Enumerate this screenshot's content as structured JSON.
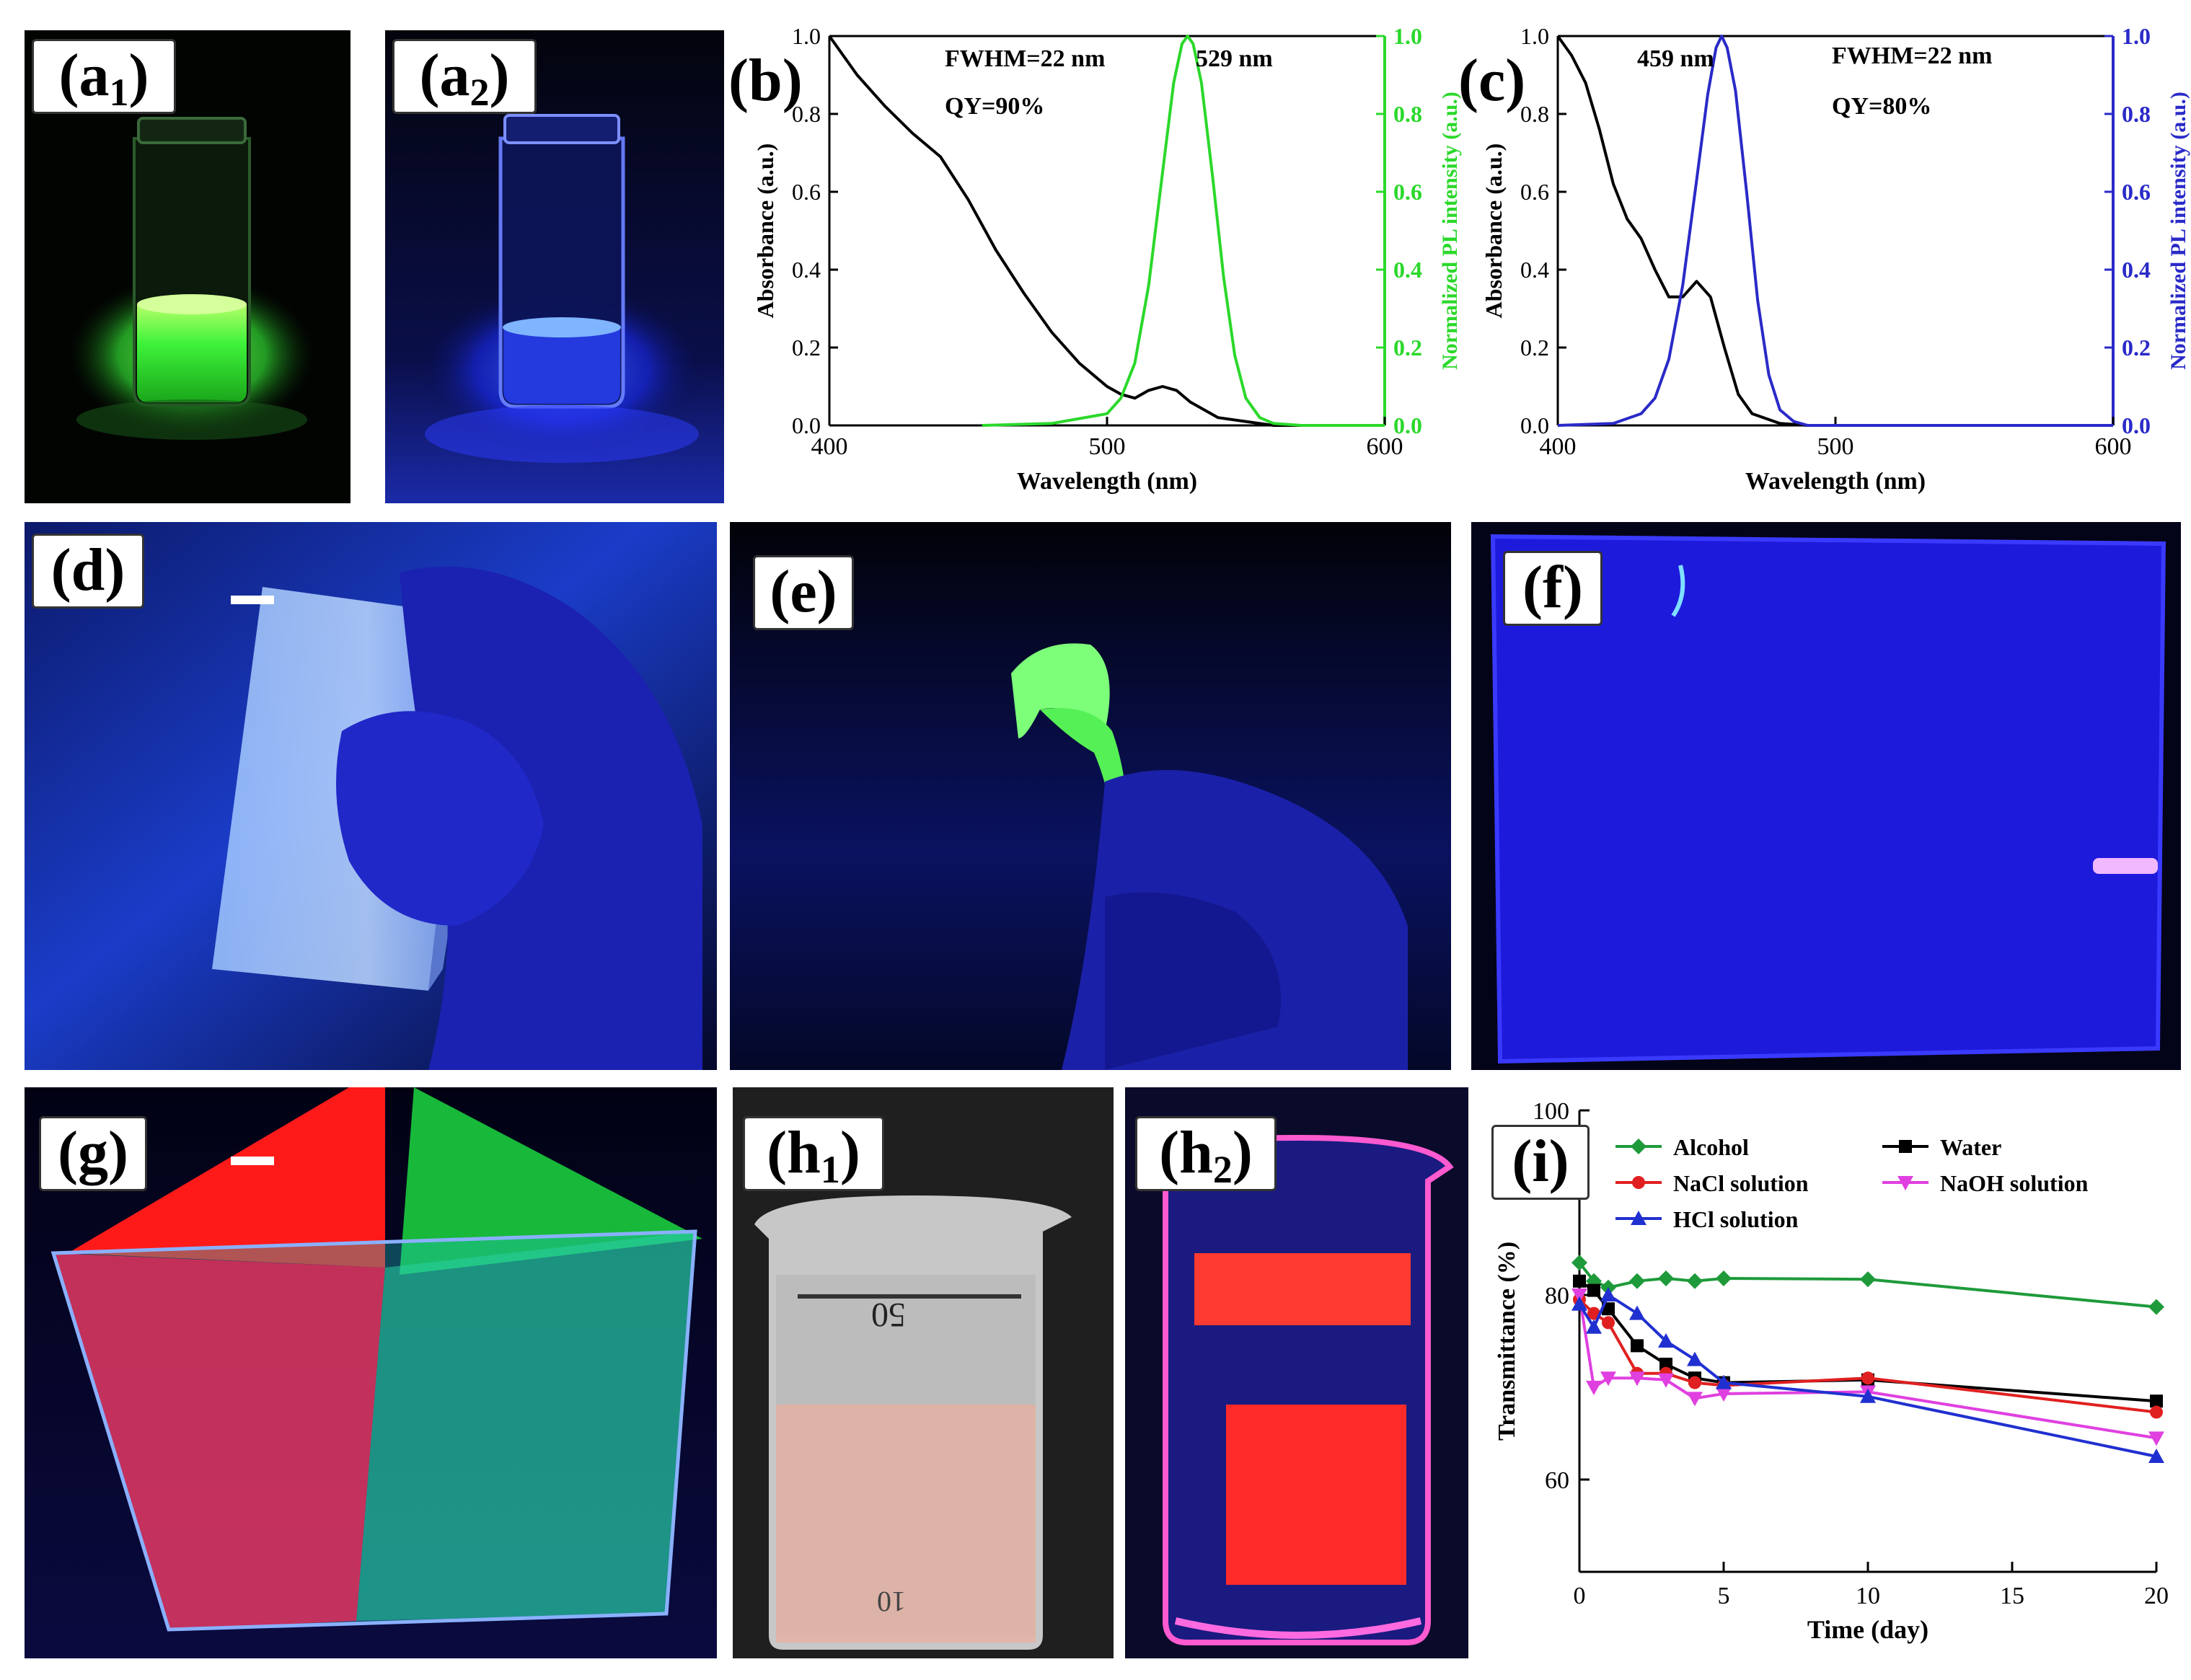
{
  "panels": {
    "a1": {
      "label": "a",
      "sub": "1"
    },
    "a2": {
      "label": "a",
      "sub": "2"
    },
    "d": {
      "label": "(d)"
    },
    "e": {
      "label": "(e)"
    },
    "f": {
      "label": "(f)"
    },
    "g": {
      "label": "(g)"
    },
    "h1": {
      "label": "h",
      "sub": "1"
    },
    "h2": {
      "label": "h",
      "sub": "2"
    }
  },
  "photo_colors": {
    "green_emission": "#39ff3a",
    "blue_emission": "#1b2dff",
    "red_emission": "#ff1a2a",
    "pink_glow": "#ff3fb8",
    "background": "#05050f"
  },
  "beaker": {
    "mark_50": "50",
    "mark_10": "10"
  },
  "chart_data": [
    {
      "id": "b",
      "panel_label": "(b)",
      "type": "line",
      "xlabel": "Wavelength (nm)",
      "ylabel_left": "Absorbance (a.u.)",
      "ylabel_right": "Normalized PL intensity (a.u.)",
      "xlim": [
        400,
        600
      ],
      "ylim": [
        0,
        1.0
      ],
      "x_ticks": [
        "400",
        "500",
        "600"
      ],
      "y_ticks": [
        "0.0",
        "0.2",
        "0.4",
        "0.6",
        "0.8",
        "1.0"
      ],
      "right_axis_color": "#2bd82b",
      "annotations": [
        "FWHM=22 nm",
        "QY=90%",
        "529 nm"
      ],
      "series": [
        {
          "axis": "left",
          "color": "#000000",
          "x": [
            400,
            410,
            420,
            430,
            440,
            450,
            460,
            470,
            480,
            490,
            500,
            505,
            510,
            515,
            520,
            525,
            530,
            540,
            550,
            560,
            570,
            580,
            590,
            600
          ],
          "y": [
            1.0,
            0.9,
            0.82,
            0.75,
            0.69,
            0.58,
            0.45,
            0.34,
            0.24,
            0.16,
            0.1,
            0.08,
            0.07,
            0.09,
            0.1,
            0.09,
            0.06,
            0.02,
            0.01,
            0.0,
            0.0,
            0.0,
            0.0,
            0.0
          ]
        },
        {
          "axis": "right",
          "color": "#2bd82b",
          "x": [
            455,
            480,
            500,
            505,
            510,
            515,
            520,
            524,
            527,
            529,
            531,
            534,
            538,
            542,
            546,
            550,
            555,
            560,
            570,
            600
          ],
          "y": [
            0.0,
            0.005,
            0.03,
            0.07,
            0.16,
            0.36,
            0.65,
            0.88,
            0.98,
            1.0,
            0.98,
            0.88,
            0.64,
            0.38,
            0.18,
            0.07,
            0.02,
            0.005,
            0.0,
            0.0
          ]
        }
      ]
    },
    {
      "id": "c",
      "panel_label": "(c)",
      "type": "line",
      "xlabel": "Wavelength (nm)",
      "ylabel_left": "Absorbance (a.u.)",
      "ylabel_right": "Normalized PL intensity (a.u.)",
      "xlim": [
        400,
        600
      ],
      "ylim": [
        0,
        1.0
      ],
      "x_ticks": [
        "400",
        "500",
        "600"
      ],
      "y_ticks": [
        "0.0",
        "0.2",
        "0.4",
        "0.6",
        "0.8",
        "1.0"
      ],
      "right_axis_color": "#2a2ac8",
      "annotations": [
        "459 nm",
        "FWHM=22 nm",
        "QY=80%"
      ],
      "series": [
        {
          "axis": "left",
          "color": "#000000",
          "x": [
            400,
            405,
            410,
            415,
            420,
            425,
            430,
            435,
            440,
            445,
            450,
            455,
            460,
            465,
            470,
            480,
            490,
            500,
            600
          ],
          "y": [
            1.0,
            0.95,
            0.88,
            0.76,
            0.62,
            0.53,
            0.48,
            0.4,
            0.33,
            0.33,
            0.37,
            0.33,
            0.2,
            0.08,
            0.03,
            0.005,
            0.0,
            0.0,
            0.0
          ]
        },
        {
          "axis": "right",
          "color": "#2a2ac8",
          "x": [
            400,
            420,
            430,
            435,
            440,
            445,
            450,
            454,
            457,
            459,
            461,
            464,
            468,
            472,
            476,
            480,
            485,
            490,
            600
          ],
          "y": [
            0.0,
            0.005,
            0.03,
            0.07,
            0.17,
            0.36,
            0.63,
            0.85,
            0.97,
            1.0,
            0.97,
            0.86,
            0.6,
            0.32,
            0.13,
            0.04,
            0.01,
            0.0,
            0.0
          ]
        }
      ]
    },
    {
      "id": "i",
      "panel_label": "(i)",
      "type": "line",
      "xlabel": "Time (day)",
      "ylabel": "Transmittance (%)",
      "xlim": [
        0,
        20
      ],
      "ylim": [
        50,
        100
      ],
      "x_ticks": [
        "0",
        "5",
        "10",
        "15",
        "20"
      ],
      "y_ticks": [
        "60",
        "80",
        "100"
      ],
      "legend": "top",
      "series": [
        {
          "name": "Alcohol",
          "color": "#1e9a3a",
          "marker": "diamond",
          "x": [
            0,
            0.5,
            1,
            2,
            3,
            4,
            5,
            10,
            20
          ],
          "y": [
            83.5,
            81.5,
            80.8,
            81.5,
            81.8,
            81.5,
            81.8,
            81.7,
            78.7
          ]
        },
        {
          "name": "Water",
          "color": "#000000",
          "marker": "square",
          "x": [
            0,
            0.5,
            1,
            2,
            3,
            4,
            5,
            10,
            20
          ],
          "y": [
            81.5,
            80.5,
            78.5,
            74.5,
            72.5,
            71,
            70.5,
            70.8,
            68.5
          ]
        },
        {
          "name": "NaCl solution",
          "color": "#e02020",
          "marker": "circle",
          "x": [
            0,
            0.5,
            1,
            2,
            3,
            4,
            5,
            10,
            20
          ],
          "y": [
            79.5,
            78,
            77,
            71.5,
            71.5,
            70.5,
            70.2,
            71,
            67.3
          ]
        },
        {
          "name": "NaOH solution",
          "color": "#e040e0",
          "marker": "triangle-down",
          "x": [
            0,
            0.5,
            1,
            2,
            3,
            4,
            5,
            10,
            20
          ],
          "y": [
            80,
            70,
            71,
            71,
            70.8,
            68.8,
            69.3,
            69.5,
            64.5
          ]
        },
        {
          "name": "HCl solution",
          "color": "#2030d0",
          "marker": "triangle-up",
          "x": [
            0,
            0.5,
            1,
            2,
            3,
            4,
            5,
            10,
            20
          ],
          "y": [
            79,
            76.5,
            80,
            78,
            75,
            73,
            70.5,
            69,
            62.5
          ]
        }
      ]
    }
  ]
}
